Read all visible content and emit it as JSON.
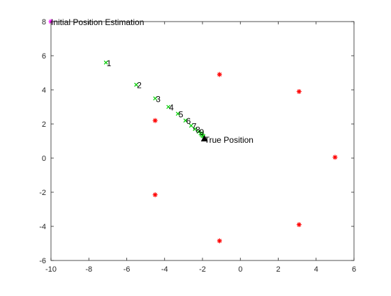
{
  "chart_data": {
    "type": "scatter",
    "xlim": [
      -10,
      6
    ],
    "ylim": [
      -6,
      8
    ],
    "xticks": [
      "-10",
      "-8",
      "-6",
      "-4",
      "-2",
      "0",
      "2",
      "4",
      "6"
    ],
    "yticks": [
      "-6",
      "-4",
      "-2",
      "0",
      "2",
      "4",
      "6",
      "8"
    ],
    "grid": false,
    "box": true,
    "colors": {
      "anchor": "#ff0000",
      "estimate": "#00cc00",
      "initial": "#ff00ff",
      "true": "#000000",
      "axis": "#262626"
    },
    "anchors": [
      {
        "x": -1.1,
        "y": 4.9
      },
      {
        "x": 3.1,
        "y": 3.9
      },
      {
        "x": -4.5,
        "y": 2.2
      },
      {
        "x": 5.0,
        "y": 0.05
      },
      {
        "x": -4.5,
        "y": -2.15
      },
      {
        "x": 3.1,
        "y": -3.9
      },
      {
        "x": -1.1,
        "y": -4.85
      }
    ],
    "initial_point": {
      "x": -10,
      "y": 8
    },
    "estimates": [
      {
        "x": -7.1,
        "y": 5.6,
        "label": "1"
      },
      {
        "x": -5.5,
        "y": 4.3,
        "label": "2"
      },
      {
        "x": -4.5,
        "y": 3.5,
        "label": "3"
      },
      {
        "x": -3.8,
        "y": 3.0,
        "label": "4"
      },
      {
        "x": -3.3,
        "y": 2.6,
        "label": "5"
      },
      {
        "x": -2.9,
        "y": 2.2,
        "label": "6"
      },
      {
        "x": -2.6,
        "y": 1.9,
        "label": "7"
      },
      {
        "x": -2.4,
        "y": 1.7,
        "label": "8"
      },
      {
        "x": -2.2,
        "y": 1.55,
        "label": "9"
      },
      {
        "x": -2.1,
        "y": 1.45,
        "label": ""
      },
      {
        "x": -2.05,
        "y": 1.38,
        "label": ""
      },
      {
        "x": -2.0,
        "y": 1.32,
        "label": ""
      },
      {
        "x": -1.95,
        "y": 1.28,
        "label": ""
      }
    ],
    "true_point": {
      "x": -1.9,
      "y": 1.1
    },
    "annotations": [
      {
        "text": "Initial Position Estimation",
        "x": -10,
        "y": 8
      },
      {
        "text": "True Position",
        "x": -1.9,
        "y": 1.1
      }
    ]
  }
}
